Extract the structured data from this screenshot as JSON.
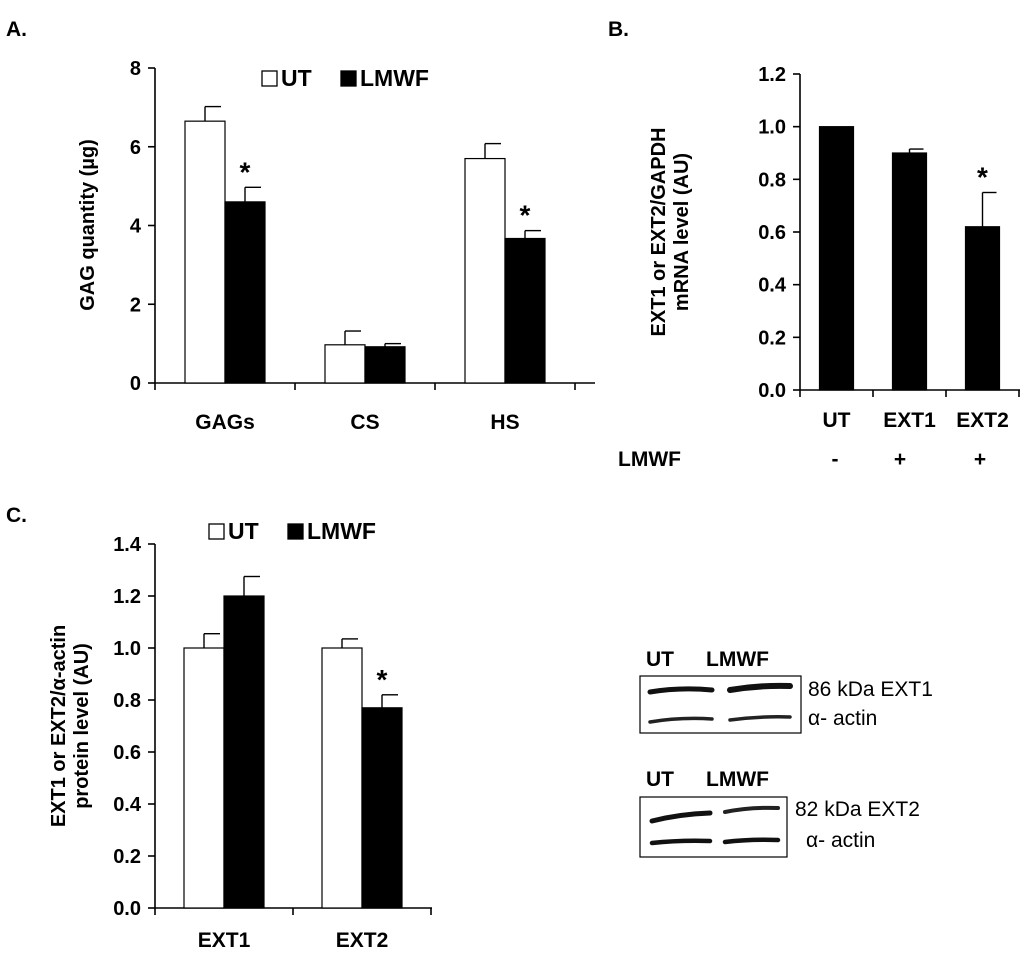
{
  "colors": {
    "ut": "#ffffff",
    "lmwf": "#000000",
    "axis": "#000000"
  },
  "panels": {
    "a": {
      "label": "A."
    },
    "b": {
      "label": "B.",
      "row_label": "LMWF",
      "row_marks": [
        "-",
        "+",
        "+"
      ]
    },
    "c": {
      "label": "C."
    }
  },
  "blots": {
    "ext1": {
      "lane1": "UT",
      "lane2": "LMWF",
      "band1": "86 kDa EXT1",
      "band2": "α- actin"
    },
    "ext2": {
      "lane1": "UT",
      "lane2": "LMWF",
      "band1": "82 kDa EXT2",
      "band2": "α- actin"
    }
  },
  "chart_data": [
    {
      "id": "a",
      "type": "bar",
      "ylabel": "GAG quantity (µg)",
      "ylim": [
        0,
        8
      ],
      "yticks": [
        "0",
        "2",
        "4",
        "6",
        "8"
      ],
      "categories": [
        "GAGs",
        "CS",
        "HS"
      ],
      "legend": {
        "placement": "top",
        "entries": [
          "UT",
          "LMWF"
        ]
      },
      "series": [
        {
          "name": "UT",
          "values": [
            6.65,
            0.97,
            5.7
          ],
          "errors": [
            0.37,
            0.35,
            0.38
          ]
        },
        {
          "name": "LMWF",
          "values": [
            4.6,
            0.92,
            3.67
          ],
          "errors": [
            0.37,
            0.08,
            0.2
          ]
        }
      ],
      "significance": [
        [
          "",
          "",
          ""
        ],
        [
          "*",
          "",
          "*"
        ]
      ]
    },
    {
      "id": "b",
      "type": "bar",
      "ylabel": "EXT1 or EXT2/GAPDH mRNA level (AU)",
      "ylim": [
        0,
        1.2
      ],
      "yticks": [
        "0.0",
        "0.2",
        "0.4",
        "0.6",
        "0.8",
        "1.0",
        "1.2"
      ],
      "categories": [
        "UT",
        "EXT1",
        "EXT2"
      ],
      "series": [
        {
          "values": [
            1.0,
            0.9,
            0.62
          ],
          "errors": [
            0,
            0.015,
            0.13
          ]
        }
      ],
      "significance": [
        [
          "",
          "",
          "*"
        ]
      ]
    },
    {
      "id": "c",
      "type": "bar",
      "ylabel": "EXT1 or EXT2/α-actin protein level (AU)",
      "ylim": [
        0,
        1.4
      ],
      "yticks": [
        "0.0",
        "0.2",
        "0.4",
        "0.6",
        "0.8",
        "1.0",
        "1.2",
        "1.4"
      ],
      "categories": [
        "EXT1",
        "EXT2"
      ],
      "legend": {
        "placement": "top",
        "entries": [
          "UT",
          "LMWF"
        ]
      },
      "series": [
        {
          "name": "UT",
          "values": [
            1.0,
            1.0
          ],
          "errors": [
            0.055,
            0.035
          ]
        },
        {
          "name": "LMWF",
          "values": [
            1.2,
            0.77
          ],
          "errors": [
            0.075,
            0.05
          ]
        }
      ],
      "significance": [
        [
          "",
          ""
        ],
        [
          "",
          "*"
        ]
      ]
    }
  ]
}
